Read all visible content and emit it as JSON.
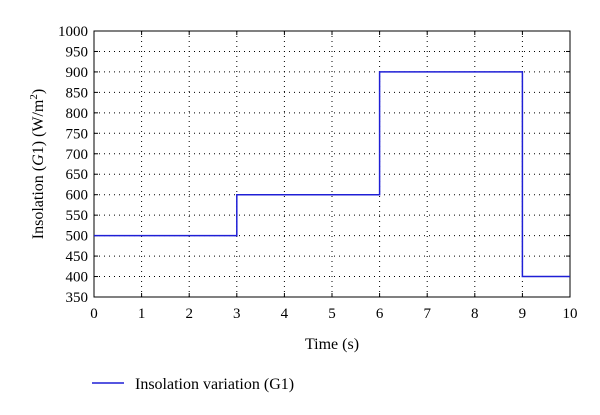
{
  "chart_data": {
    "type": "line",
    "xlabel": "Time (s)",
    "ylabel": {
      "prefix": "Insolation (",
      "italic": "G",
      "mid": "1) (W/m",
      "sup": "2",
      "suffix": ")"
    },
    "xlim": [
      0,
      10
    ],
    "ylim": [
      350,
      1000
    ],
    "xticks": [
      0,
      1,
      2,
      3,
      4,
      5,
      6,
      7,
      8,
      9,
      10
    ],
    "yticks": [
      350,
      400,
      450,
      500,
      550,
      600,
      650,
      700,
      750,
      800,
      850,
      900,
      950,
      1000
    ],
    "grid": true,
    "grid_style": "dotted",
    "legend_position": "bottom-left, below plot",
    "series": [
      {
        "name": "Insolation variation (G1)",
        "color": "#1f1fd6",
        "step": true,
        "x": [
          0,
          3,
          3,
          6,
          6,
          9,
          9,
          10
        ],
        "y": [
          500,
          500,
          600,
          600,
          900,
          900,
          400,
          400
        ]
      }
    ]
  }
}
